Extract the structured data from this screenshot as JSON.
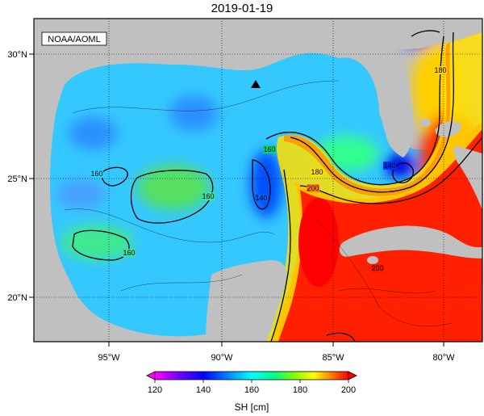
{
  "title": "2019-01-19",
  "credit": "NOAA/AOML",
  "variable_label": "SH [cm]",
  "lon_ticks": [
    "95°W",
    "90°W",
    "85°W",
    "80°W"
  ],
  "lat_ticks": [
    "30°N",
    "25°N",
    "20°N"
  ],
  "colorbar": {
    "ticks": [
      "120",
      "140",
      "160",
      "180",
      "200"
    ],
    "min": 120,
    "max": 200,
    "colors": [
      "#ff00ff",
      "#8000ff",
      "#0000ff",
      "#0080ff",
      "#00ffff",
      "#00ff80",
      "#80ff00",
      "#ffff00",
      "#ff8000",
      "#ff0000"
    ]
  },
  "contour_labels": [
    "180",
    "160",
    "140",
    "200",
    "180",
    "160",
    "160",
    "160",
    "140",
    "200",
    "140",
    "200"
  ],
  "marker": {
    "symbol": "triangle",
    "color": "#000000"
  }
}
